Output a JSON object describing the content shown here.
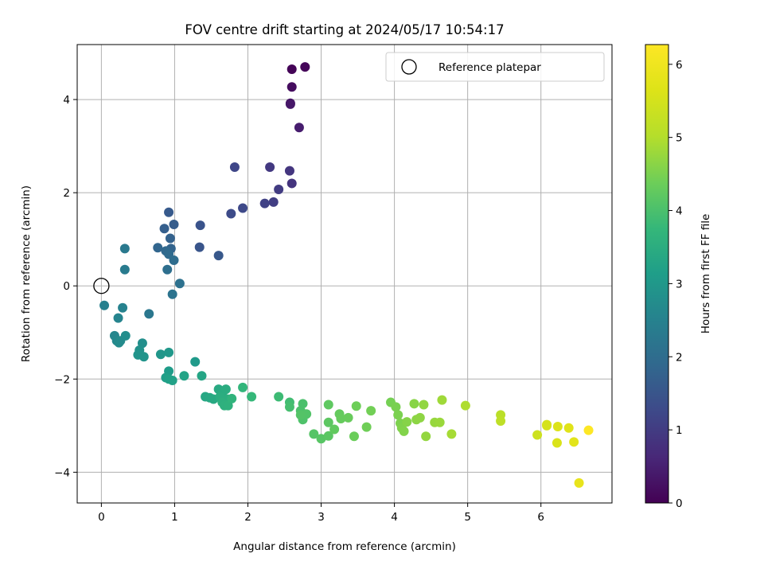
{
  "chart_data": {
    "type": "scatter",
    "title": "FOV centre drift starting at 2024/05/17 10:54:17",
    "xlabel": "Angular distance from reference (arcmin)",
    "ylabel": "Rotation from reference (arcmin)",
    "xlim": [
      -0.33,
      6.97
    ],
    "ylim": [
      -4.66,
      5.18
    ],
    "xticks": [
      "0",
      "1",
      "2",
      "3",
      "4",
      "5",
      "6"
    ],
    "yticks": [
      "4",
      "2",
      "0",
      "−2",
      "−4"
    ],
    "grid": true,
    "legend": {
      "position": "top-right",
      "entries": [
        "Reference platepar"
      ]
    },
    "reference_point": {
      "x": 0,
      "y": 0
    },
    "colorbar": {
      "label": "Hours from first FF file",
      "min": 0,
      "max": 6.27,
      "ticks": [
        "0",
        "1",
        "2",
        "3",
        "4",
        "5",
        "6"
      ],
      "colormap": "viridis"
    },
    "series": [
      {
        "points": [
          [
            2.6,
            4.65,
            0.05
          ],
          [
            2.78,
            4.7,
            0.08
          ],
          [
            2.6,
            4.27,
            0.2
          ],
          [
            2.58,
            3.92,
            0.3
          ],
          [
            2.58,
            3.9,
            0.35
          ],
          [
            2.7,
            3.4,
            0.45
          ],
          [
            2.6,
            2.2,
            0.85
          ],
          [
            2.57,
            2.47,
            0.9
          ],
          [
            2.3,
            2.55,
            0.95
          ],
          [
            2.42,
            2.07,
            1.0
          ],
          [
            2.35,
            1.8,
            1.05
          ],
          [
            2.23,
            1.77,
            1.1
          ],
          [
            1.82,
            2.55,
            1.2
          ],
          [
            1.93,
            1.67,
            1.25
          ],
          [
            1.77,
            1.55,
            1.3
          ],
          [
            1.35,
            1.3,
            1.45
          ],
          [
            1.34,
            0.83,
            1.5
          ],
          [
            1.6,
            0.65,
            1.55
          ],
          [
            0.92,
            1.58,
            1.6
          ],
          [
            0.99,
            1.32,
            1.65
          ],
          [
            0.86,
            1.23,
            1.7
          ],
          [
            0.94,
            1.02,
            1.75
          ],
          [
            0.95,
            0.8,
            1.8
          ],
          [
            0.77,
            0.82,
            1.85
          ],
          [
            0.88,
            0.75,
            1.9
          ],
          [
            0.92,
            0.68,
            1.95
          ],
          [
            0.99,
            0.55,
            2.0
          ],
          [
            0.9,
            0.35,
            2.05
          ],
          [
            1.07,
            0.05,
            2.1
          ],
          [
            0.97,
            -0.18,
            2.15
          ],
          [
            0.65,
            -0.6,
            2.25
          ],
          [
            0.32,
            0.8,
            2.3
          ],
          [
            0.32,
            0.35,
            2.35
          ],
          [
            0.04,
            -0.42,
            2.45
          ],
          [
            0.29,
            -0.47,
            2.5
          ],
          [
            0.23,
            -0.69,
            2.55
          ],
          [
            0.18,
            -1.07,
            2.6
          ],
          [
            0.21,
            -1.18,
            2.65
          ],
          [
            0.24,
            -1.22,
            2.7
          ],
          [
            0.26,
            -1.18,
            2.72
          ],
          [
            0.33,
            -1.07,
            2.75
          ],
          [
            0.56,
            -1.23,
            2.8
          ],
          [
            0.52,
            -1.38,
            2.85
          ],
          [
            0.5,
            -1.48,
            2.9
          ],
          [
            0.58,
            -1.52,
            2.92
          ],
          [
            0.81,
            -1.47,
            2.95
          ],
          [
            0.92,
            -1.43,
            3.0
          ],
          [
            1.28,
            -1.63,
            3.05
          ],
          [
            0.92,
            -1.83,
            3.1
          ],
          [
            0.88,
            -1.97,
            3.15
          ],
          [
            0.92,
            -2.0,
            3.2
          ],
          [
            0.97,
            -2.03,
            3.22
          ],
          [
            1.13,
            -1.93,
            3.25
          ],
          [
            1.37,
            -1.93,
            3.3
          ],
          [
            1.42,
            -2.38,
            3.35
          ],
          [
            1.48,
            -2.4,
            3.38
          ],
          [
            1.53,
            -2.43,
            3.4
          ],
          [
            1.6,
            -2.22,
            3.42
          ],
          [
            1.65,
            -2.3,
            3.45
          ],
          [
            1.7,
            -2.22,
            3.48
          ],
          [
            1.62,
            -2.38,
            3.5
          ],
          [
            1.72,
            -2.43,
            3.52
          ],
          [
            1.65,
            -2.5,
            3.55
          ],
          [
            1.68,
            -2.57,
            3.58
          ],
          [
            1.73,
            -2.57,
            3.6
          ],
          [
            1.78,
            -2.42,
            3.65
          ],
          [
            1.93,
            -2.18,
            3.7
          ],
          [
            2.05,
            -2.38,
            3.75
          ],
          [
            2.42,
            -2.38,
            3.85
          ],
          [
            2.57,
            -2.5,
            3.9
          ],
          [
            2.57,
            -2.6,
            3.95
          ],
          [
            2.75,
            -2.53,
            4.0
          ],
          [
            2.72,
            -2.68,
            4.02
          ],
          [
            2.75,
            -2.87,
            4.05
          ],
          [
            2.8,
            -2.75,
            4.08
          ],
          [
            2.72,
            -2.77,
            4.1
          ],
          [
            2.9,
            -3.18,
            4.12
          ],
          [
            3.0,
            -3.28,
            4.15
          ],
          [
            3.1,
            -3.22,
            4.18
          ],
          [
            3.1,
            -2.93,
            4.2
          ],
          [
            3.1,
            -2.55,
            4.22
          ],
          [
            3.18,
            -3.08,
            4.25
          ],
          [
            3.25,
            -2.75,
            4.28
          ],
          [
            3.27,
            -2.85,
            4.3
          ],
          [
            3.37,
            -2.83,
            4.32
          ],
          [
            3.45,
            -3.23,
            4.35
          ],
          [
            3.48,
            -2.58,
            4.38
          ],
          [
            3.62,
            -3.03,
            4.4
          ],
          [
            3.68,
            -2.68,
            4.42
          ],
          [
            3.95,
            -2.5,
            4.45
          ],
          [
            4.02,
            -2.6,
            4.48
          ],
          [
            4.05,
            -2.77,
            4.5
          ],
          [
            4.08,
            -2.95,
            4.52
          ],
          [
            4.1,
            -3.05,
            4.55
          ],
          [
            4.13,
            -3.12,
            4.57
          ],
          [
            4.17,
            -2.92,
            4.6
          ],
          [
            4.27,
            -2.53,
            4.62
          ],
          [
            4.3,
            -2.87,
            4.65
          ],
          [
            4.35,
            -2.83,
            4.67
          ],
          [
            4.4,
            -2.55,
            4.7
          ],
          [
            4.43,
            -3.23,
            4.72
          ],
          [
            4.55,
            -2.93,
            4.75
          ],
          [
            4.62,
            -2.93,
            4.78
          ],
          [
            4.65,
            -2.45,
            4.82
          ],
          [
            4.78,
            -3.18,
            4.88
          ],
          [
            4.97,
            -2.57,
            4.95
          ],
          [
            5.45,
            -2.77,
            5.1
          ],
          [
            5.45,
            -2.9,
            5.15
          ],
          [
            5.95,
            -3.2,
            5.4
          ],
          [
            6.08,
            -2.98,
            5.5
          ],
          [
            6.08,
            -3.0,
            5.52
          ],
          [
            6.22,
            -3.37,
            5.6
          ],
          [
            6.23,
            -3.02,
            5.62
          ],
          [
            6.38,
            -3.05,
            5.7
          ],
          [
            6.45,
            -3.35,
            5.75
          ],
          [
            6.52,
            -4.23,
            5.85
          ],
          [
            6.65,
            -3.1,
            6.27
          ]
        ]
      }
    ]
  }
}
